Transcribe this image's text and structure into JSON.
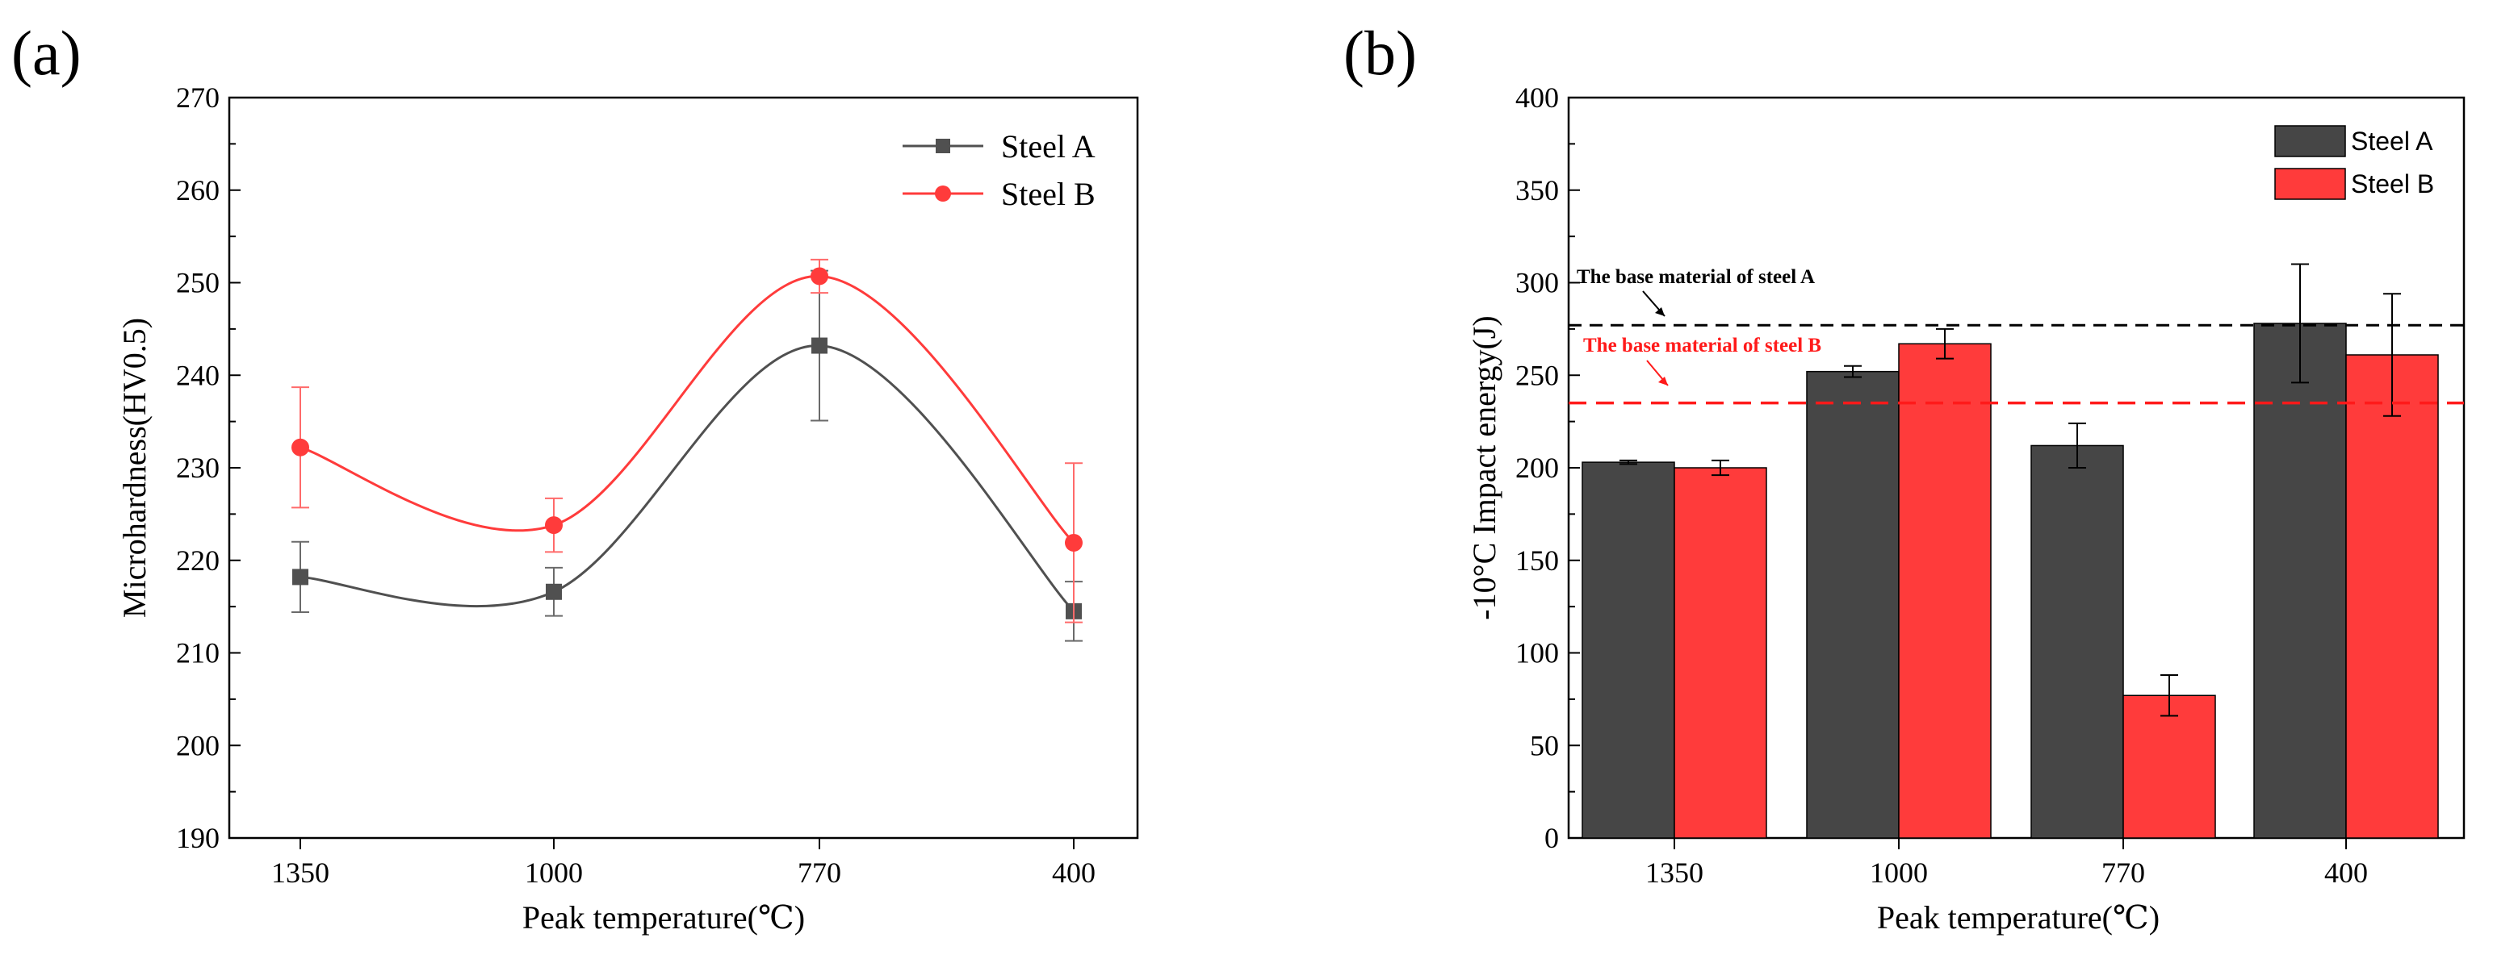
{
  "chart_data": [
    {
      "panel_label": "(a)",
      "type": "line",
      "categories": [
        "1350",
        "1000",
        "770",
        "400"
      ],
      "xlabel": "Peak temperature(℃)",
      "ylabel": "Microhardness(HV0.5)",
      "ylim": [
        190,
        270
      ],
      "yticks": [
        "190",
        "200",
        "210",
        "220",
        "230",
        "240",
        "250",
        "260",
        "270"
      ],
      "grid": false,
      "legend_position": "top-right",
      "series": [
        {
          "name": "Steel A",
          "color": "#505050",
          "marker": "square",
          "values": [
            218.2,
            216.6,
            243.2,
            214.5
          ],
          "errors": [
            3.8,
            2.6,
            8.1,
            3.2
          ]
        },
        {
          "name": "Steel B",
          "color": "#ff3b3b",
          "marker": "circle",
          "values": [
            232.2,
            223.8,
            250.7,
            221.9
          ],
          "errors": [
            6.5,
            2.9,
            1.8,
            8.6
          ]
        }
      ]
    },
    {
      "panel_label": "(b)",
      "type": "bar",
      "categories": [
        "1350",
        "1000",
        "770",
        "400"
      ],
      "xlabel": "Peak temperature(℃)",
      "ylabel": "-10°C Impact energy(J)",
      "ylim": [
        0,
        400
      ],
      "yticks": [
        "0",
        "50",
        "100",
        "150",
        "200",
        "250",
        "300",
        "350",
        "400"
      ],
      "grid": false,
      "legend_position": "top-right",
      "series": [
        {
          "name": "Steel A",
          "color": "#464646",
          "values": [
            203,
            252,
            212,
            278
          ],
          "errors": [
            1,
            3,
            12,
            32
          ]
        },
        {
          "name": "Steel B",
          "color": "#ff3b3b",
          "values": [
            200,
            267,
            77,
            261
          ],
          "errors": [
            4,
            8,
            11,
            33
          ]
        }
      ],
      "reference_lines": [
        {
          "label": "The base material of steel A",
          "value": 277,
          "color": "#000000"
        },
        {
          "label": "The base material of steel B",
          "value": 235,
          "color": "#ff1a1a"
        }
      ]
    }
  ]
}
